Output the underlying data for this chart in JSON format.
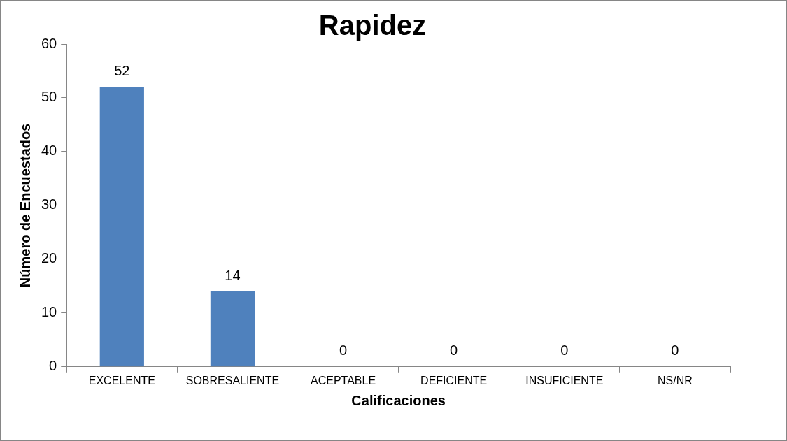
{
  "chart_data": {
    "type": "bar",
    "title": "Rapidez",
    "xlabel": "Calificaciones",
    "ylabel": "Número de Encuestados",
    "categories": [
      "EXCELENTE",
      "SOBRESALIENTE",
      "ACEPTABLE",
      "DEFICIENTE",
      "INSUFICIENTE",
      "NS/NR"
    ],
    "values": [
      52,
      14,
      0,
      0,
      0,
      0
    ],
    "color": "#4f81bd",
    "ylim": [
      0,
      60
    ],
    "yticks": [
      0,
      10,
      20,
      30,
      40,
      50,
      60
    ],
    "grid": false,
    "legend": false,
    "data_labels": true
  }
}
